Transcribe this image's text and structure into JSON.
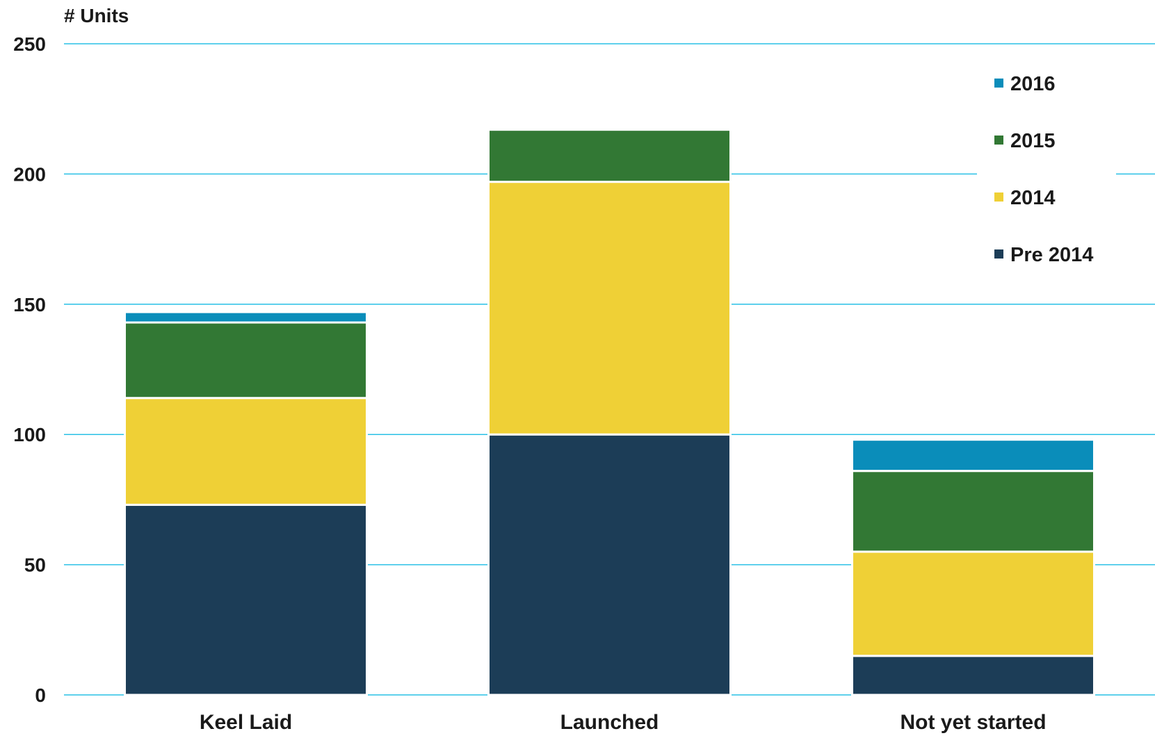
{
  "chart_data": {
    "type": "bar",
    "stacked": true,
    "title": "",
    "xlabel": "",
    "ylabel": "# Units",
    "ylim": [
      0,
      250
    ],
    "yticks": [
      0,
      50,
      100,
      150,
      200,
      250
    ],
    "grid": true,
    "legend_position": "top-right",
    "categories": [
      "Keel Laid",
      "Launched",
      "Not yet started"
    ],
    "series": [
      {
        "name": "Pre 2014",
        "color": "#1c3d57",
        "values": [
          73,
          100,
          15
        ]
      },
      {
        "name": "2014",
        "color": "#efd036",
        "values": [
          41,
          97,
          40
        ]
      },
      {
        "name": "2015",
        "color": "#327834",
        "values": [
          29,
          20,
          31
        ]
      },
      {
        "name": "2016",
        "color": "#0a8dba",
        "values": [
          4,
          0,
          12
        ]
      }
    ],
    "legend_order": [
      "2016",
      "2015",
      "2014",
      "Pre 2014"
    ],
    "gridline_color": "#29c0e6"
  }
}
